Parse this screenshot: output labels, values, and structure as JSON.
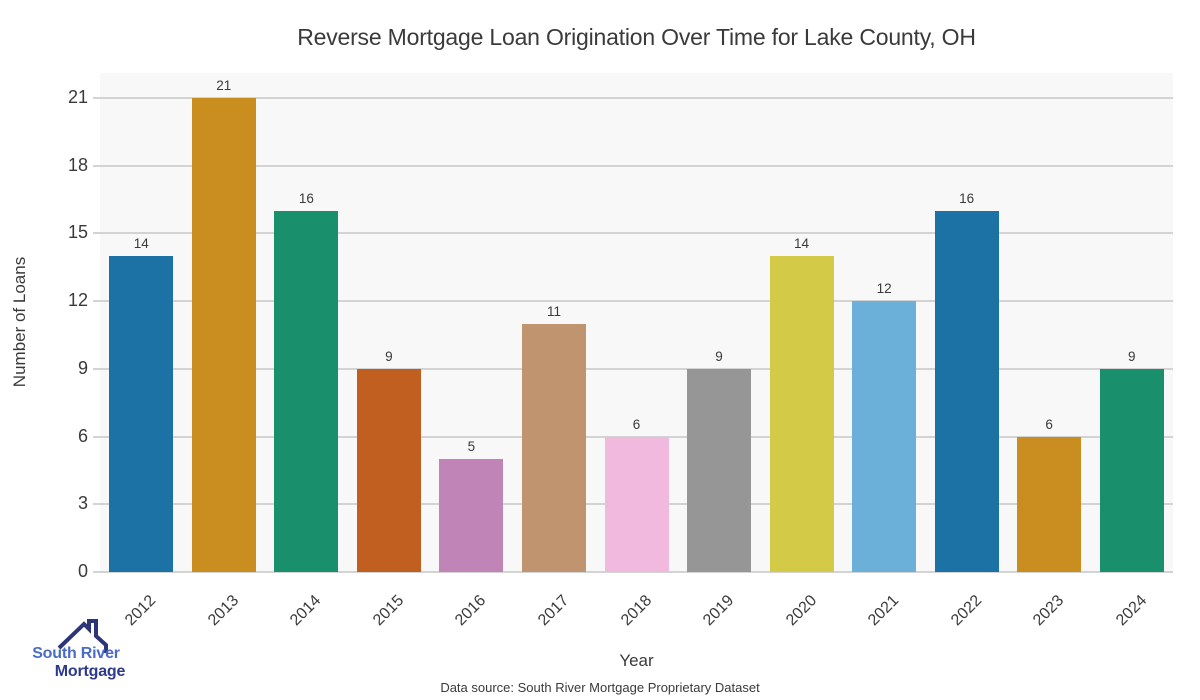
{
  "chart_data": {
    "type": "bar",
    "title": "Reverse Mortgage Loan Origination Over Time for Lake County, OH",
    "xlabel": "Year",
    "ylabel": "Number of Loans",
    "categories": [
      "2012",
      "2013",
      "2014",
      "2015",
      "2016",
      "2017",
      "2018",
      "2019",
      "2020",
      "2021",
      "2022",
      "2023",
      "2024"
    ],
    "values": [
      14,
      21,
      16,
      9,
      5,
      11,
      6,
      9,
      14,
      12,
      16,
      6,
      9
    ],
    "bar_colors": [
      "#1d72a5",
      "#c98d20",
      "#1a8f6b",
      "#c05f20",
      "#c184b6",
      "#c0946f",
      "#f2b9df",
      "#969696",
      "#d3cb47",
      "#6ab0d8",
      "#1d72a5",
      "#c98d20",
      "#1a8f6b"
    ],
    "yticks": [
      0,
      3,
      6,
      9,
      12,
      15,
      18,
      21
    ],
    "ylim": [
      0,
      22.1
    ],
    "grid": true,
    "legend": "none",
    "plot_bg": "#f8f8f8",
    "grid_color": "#d3d3d3",
    "text_color": "#3a3a3a"
  },
  "footer": {
    "data_source": "Data source: South River Mortgage Proprietary Dataset"
  },
  "logo": {
    "line1": "South River",
    "line2": "Mortgage",
    "color1": "#4a6cc4",
    "color2": "#2d3a8c",
    "icon_color": "#2b3578",
    "icon": "house-roof-icon"
  }
}
